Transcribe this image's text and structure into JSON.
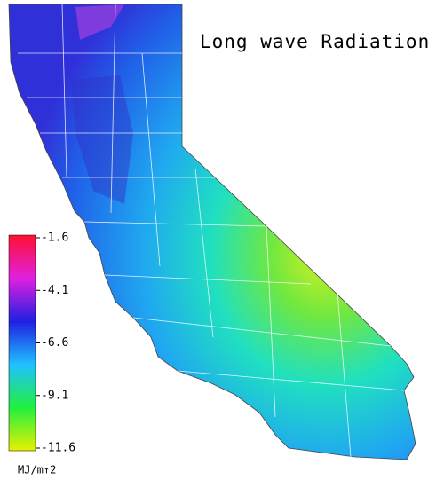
{
  "map": {
    "title": "Long wave Radiation",
    "colorbar": {
      "range": [
        -11.6,
        -1.6
      ],
      "ticks": [
        -1.6,
        -4.1,
        -6.6,
        -9.1,
        -11.6
      ],
      "colors": [
        "#ff1030",
        "#e020e0",
        "#2020e0",
        "#20c0ff",
        "#20f040",
        "#e8f000"
      ],
      "unit": "MJ/m↑2"
    }
  }
}
